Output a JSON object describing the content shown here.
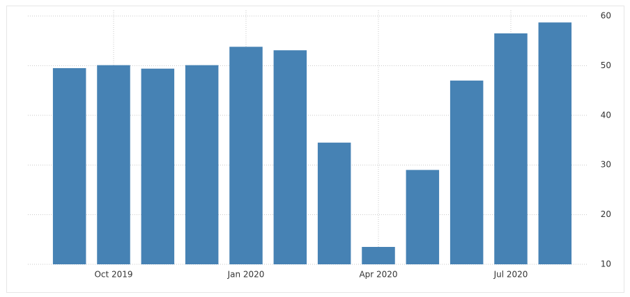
{
  "chart_data": {
    "type": "bar",
    "categories": [
      null,
      "Oct 2019",
      null,
      null,
      "Jan 2020",
      null,
      null,
      "Apr 2020",
      null,
      null,
      "Jul 2020",
      null
    ],
    "values": [
      49.5,
      50.1,
      49.4,
      50.1,
      53.8,
      53.1,
      34.5,
      13.5,
      29.0,
      47.0,
      56.5,
      58.7
    ],
    "color": "#4682b4",
    "ylim": [
      10,
      60
    ],
    "yticks": [
      10,
      20,
      30,
      40,
      50,
      60
    ],
    "grid": true
  }
}
